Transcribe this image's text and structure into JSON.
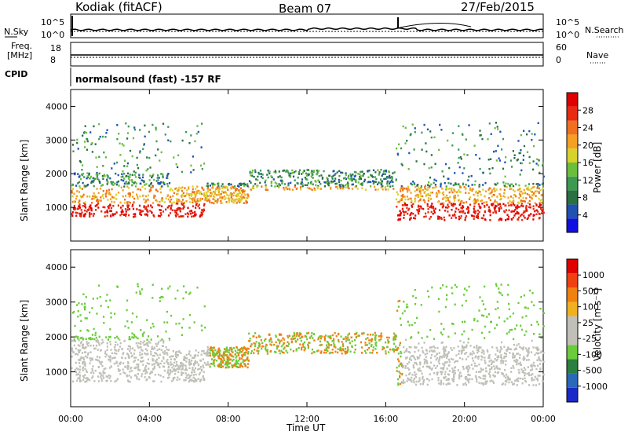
{
  "header": {
    "station": "Kodiak (fitACF)",
    "beam": "Beam 07",
    "date": "27/Feb/2015"
  },
  "status_panels": {
    "nsky_label": "N.Sky",
    "nsky_ticks": [
      "10^5",
      "10^0"
    ],
    "nsearch_label": "N.Search",
    "nsearch_ticks": [
      "10^5",
      "10^0"
    ],
    "freq_label_1": "Freq.",
    "freq_label_2": "[MHz]",
    "freq_ticks": [
      "18",
      "8"
    ],
    "nave_label": "Nave",
    "nave_ticks": [
      "60",
      "0"
    ],
    "cpid_label": "CPID",
    "cpid_text": "normalsound (fast) -157 RF"
  },
  "chart_data": [
    {
      "type": "heatmap",
      "name": "power",
      "ylabel": "Slant Range [km]",
      "y_ticks": [
        "1000",
        "2000",
        "3000",
        "4000"
      ],
      "ylim": [
        0,
        4500
      ],
      "xlim": [
        0,
        24
      ],
      "colorbar": {
        "label": "Power [dB]",
        "ticks": [
          "4",
          "8",
          "12",
          "16",
          "20",
          "24",
          "28"
        ],
        "colors": [
          "#1010e0",
          "#2050b0",
          "#2a7040",
          "#3c9a52",
          "#6abe3c",
          "#d6d22a",
          "#f5a020",
          "#f07020",
          "#e82a10",
          "#e00000"
        ]
      }
    },
    {
      "type": "heatmap",
      "name": "velocity",
      "ylabel": "Slant Range [km]",
      "y_ticks": [
        "1000",
        "2000",
        "3000",
        "4000"
      ],
      "ylim": [
        0,
        4500
      ],
      "xlim": [
        0,
        24
      ],
      "colorbar": {
        "label": "Velocity [m s⁻¹]",
        "ticks": [
          "1000",
          "500",
          "100",
          "25",
          "-25",
          "-100",
          "-500",
          "-1000"
        ],
        "colors": [
          "#1a28c8",
          "#2a68b8",
          "#2a8040",
          "#6acc3a",
          "#c0c0b8",
          "#c0c0b8",
          "#f0b020",
          "#f08010",
          "#f04010",
          "#e00000"
        ]
      }
    }
  ],
  "xaxis": {
    "ticks": [
      "00:00",
      "04:00",
      "08:00",
      "12:00",
      "16:00",
      "20:00",
      "00:00"
    ],
    "label": "Time UT"
  }
}
